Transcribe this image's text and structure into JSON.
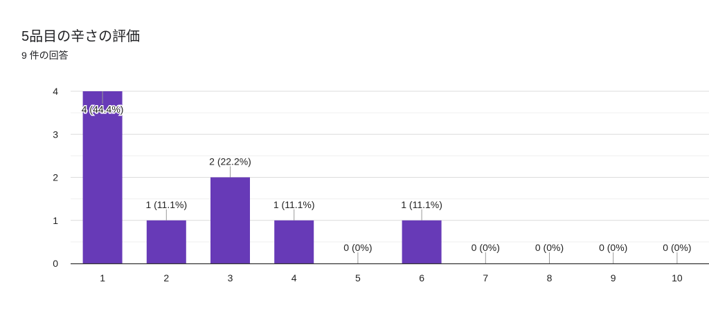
{
  "header": {
    "title": "5品目の辛さの評価",
    "subtitle": "9 件の回答"
  },
  "colors": {
    "bar": "#673ab7",
    "grid": "#e8e8e8",
    "axis": "#333333",
    "text": "#222222",
    "leader": "#999999"
  },
  "chart_data": {
    "type": "bar",
    "title": "5品目の辛さの評価",
    "subtitle": "9 件の回答",
    "categories": [
      "1",
      "2",
      "3",
      "4",
      "5",
      "6",
      "7",
      "8",
      "9",
      "10"
    ],
    "values": [
      4,
      1,
      2,
      1,
      0,
      1,
      0,
      0,
      0,
      0
    ],
    "data_labels": [
      "4 (44.4%)",
      "1 (11.1%)",
      "2 (22.2%)",
      "1 (11.1%)",
      "0 (0%)",
      "1 (11.1%)",
      "0 (0%)",
      "0 (0%)",
      "0 (0%)",
      "0 (0%)"
    ],
    "ylim": [
      0,
      4
    ],
    "yticks": [
      "0",
      "1",
      "2",
      "3",
      "4"
    ],
    "grid": true,
    "legend": "none"
  }
}
